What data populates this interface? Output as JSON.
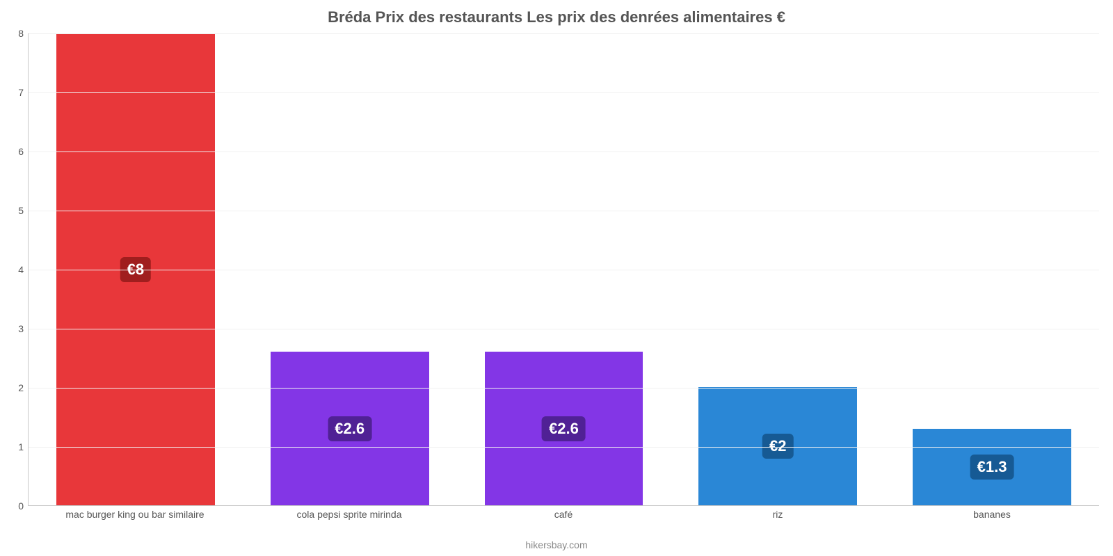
{
  "chart": {
    "type": "bar",
    "title": "Bréda Prix des restaurants Les prix des denrées alimentaires €",
    "title_fontsize": 22,
    "title_color": "#555555",
    "credit": "hikersbay.com",
    "credit_color": "#888888",
    "background_color": "#ffffff",
    "axis_color": "#c8c8c8",
    "grid_color": "#f1f1f1",
    "label_color": "#555555",
    "xlabel_fontsize": 14,
    "ylabel_fontsize": 14,
    "ylim": [
      0,
      8
    ],
    "ytick_step": 1,
    "yticks": [
      0,
      1,
      2,
      3,
      4,
      5,
      6,
      7,
      8
    ],
    "bar_width_pct": 74,
    "value_badge_fontsize": 22,
    "value_badge_radius": 6,
    "categories": [
      "mac burger king ou bar similaire",
      "cola pepsi sprite mirinda",
      "café",
      "riz",
      "bananes"
    ],
    "values": [
      8,
      2.6,
      2.6,
      2,
      1.3
    ],
    "value_labels": [
      "€8",
      "€2.6",
      "€2.6",
      "€2",
      "€1.3"
    ],
    "bar_colors": [
      "#e8373a",
      "#8336e6",
      "#8336e6",
      "#2a87d6",
      "#2a87d6"
    ],
    "badge_colors": [
      "#a01e1e",
      "#502195",
      "#502195",
      "#165a94",
      "#165a94"
    ],
    "badge_text_color": "#ffffff"
  }
}
